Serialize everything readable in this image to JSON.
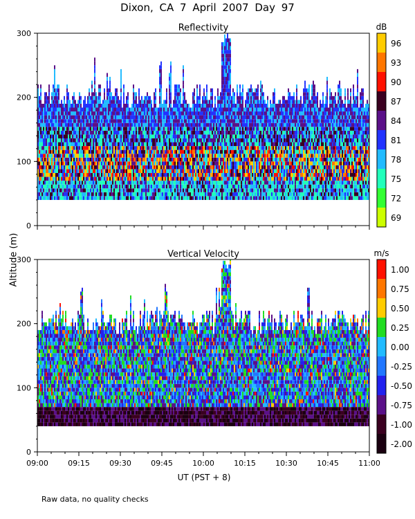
{
  "title": "Dixon, CA   7 April 2007   Day  97",
  "footnote": "Raw data, no quality checks",
  "chart_data": [
    {
      "type": "heatmap",
      "title": "Reflectivity",
      "units": "dB",
      "xlabel": "UT  (PST + 8)",
      "ylabel": "Altitude (m)",
      "xlim": [
        "09:00",
        "11:00"
      ],
      "x_ticks": [
        "09:00",
        "09:15",
        "09:30",
        "09:45",
        "10:00",
        "10:15",
        "10:30",
        "10:45",
        "11:00"
      ],
      "ylim": [
        0,
        300
      ],
      "y_ticks": [
        0,
        100,
        200,
        300
      ],
      "colorbar_ticks": [
        "96",
        "93",
        "90",
        "87",
        "84",
        "81",
        "78",
        "75",
        "72",
        "69"
      ],
      "colorbar_colors": [
        "#ffcc00",
        "#ff7700",
        "#ff1100",
        "#3a0020",
        "#5a1088",
        "#2233ff",
        "#22bbff",
        "#22ffbb",
        "#33ff33",
        "#ccff00"
      ],
      "data_altitude_range": [
        40,
        220
      ],
      "max_echo_top": 300
    },
    {
      "type": "heatmap",
      "title": "Vertical Velocity",
      "units": "m/s",
      "xlabel": "UT  (PST + 8)",
      "ylabel": "Altitude (m)",
      "xlim": [
        "09:00",
        "11:00"
      ],
      "x_ticks": [
        "09:00",
        "09:15",
        "09:30",
        "09:45",
        "10:00",
        "10:15",
        "10:30",
        "10:45",
        "11:00"
      ],
      "ylim": [
        0,
        300
      ],
      "y_ticks": [
        0,
        100,
        200,
        300
      ],
      "colorbar_ticks": [
        "1.00",
        "0.75",
        "0.50",
        "0.25",
        "0.00",
        "-0.25",
        "-0.50",
        "-0.75",
        "-1.00",
        "-2.00"
      ],
      "colorbar_colors": [
        "#ff1100",
        "#ff7700",
        "#ffcc00",
        "#22dd22",
        "#22bbff",
        "#2277ff",
        "#2222ee",
        "#5a1088",
        "#3a0020",
        "#1a0010"
      ],
      "data_altitude_range": [
        40,
        220
      ],
      "max_echo_top": 300
    }
  ]
}
